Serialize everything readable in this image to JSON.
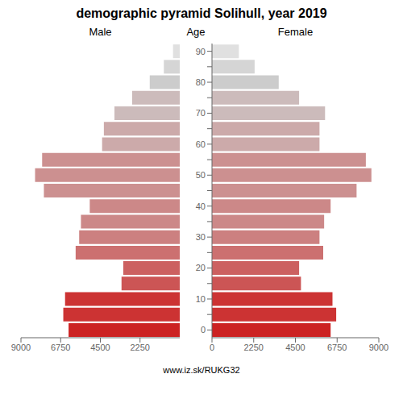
{
  "chart_data": {
    "type": "bar",
    "orientation": "horizontal",
    "title": "demographic pyramid Solihull, year 2019",
    "ylabel": "Age",
    "annotation": "www.iz.sk/RUKG32",
    "categories": [
      "0",
      null,
      "10",
      null,
      "20",
      null,
      "30",
      null,
      "40",
      null,
      "50",
      null,
      "60",
      null,
      "70",
      null,
      "80",
      null,
      "90"
    ],
    "series": [
      {
        "name": "Male",
        "values": [
          6300,
          6600,
          6500,
          3300,
          3200,
          5900,
          5700,
          5600,
          5100,
          7700,
          8200,
          7800,
          4400,
          4300,
          3700,
          2700,
          1700,
          900,
          380
        ]
      },
      {
        "name": "Female",
        "values": [
          6400,
          6700,
          6500,
          4800,
          4700,
          6000,
          5800,
          6050,
          6400,
          7800,
          8600,
          8300,
          5800,
          5800,
          6100,
          4700,
          3600,
          2300,
          1450
        ]
      }
    ],
    "colors": [
      "#cc2222",
      "#cc3333",
      "#cc3333",
      "#cc5555",
      "#cc6060",
      "#cc7070",
      "#cc8080",
      "#cc8888",
      "#cc8888",
      "#cc9090",
      "#cc9090",
      "#cc9090",
      "#ccaaaa",
      "#ccaaaa",
      "#ccbbbb",
      "#ccbbbb",
      "#cccccc",
      "#d5d5d5",
      "#e0e0e0"
    ],
    "xlim": [
      0,
      9000
    ],
    "xticks": [
      0,
      2250,
      4500,
      6750,
      9000
    ]
  }
}
